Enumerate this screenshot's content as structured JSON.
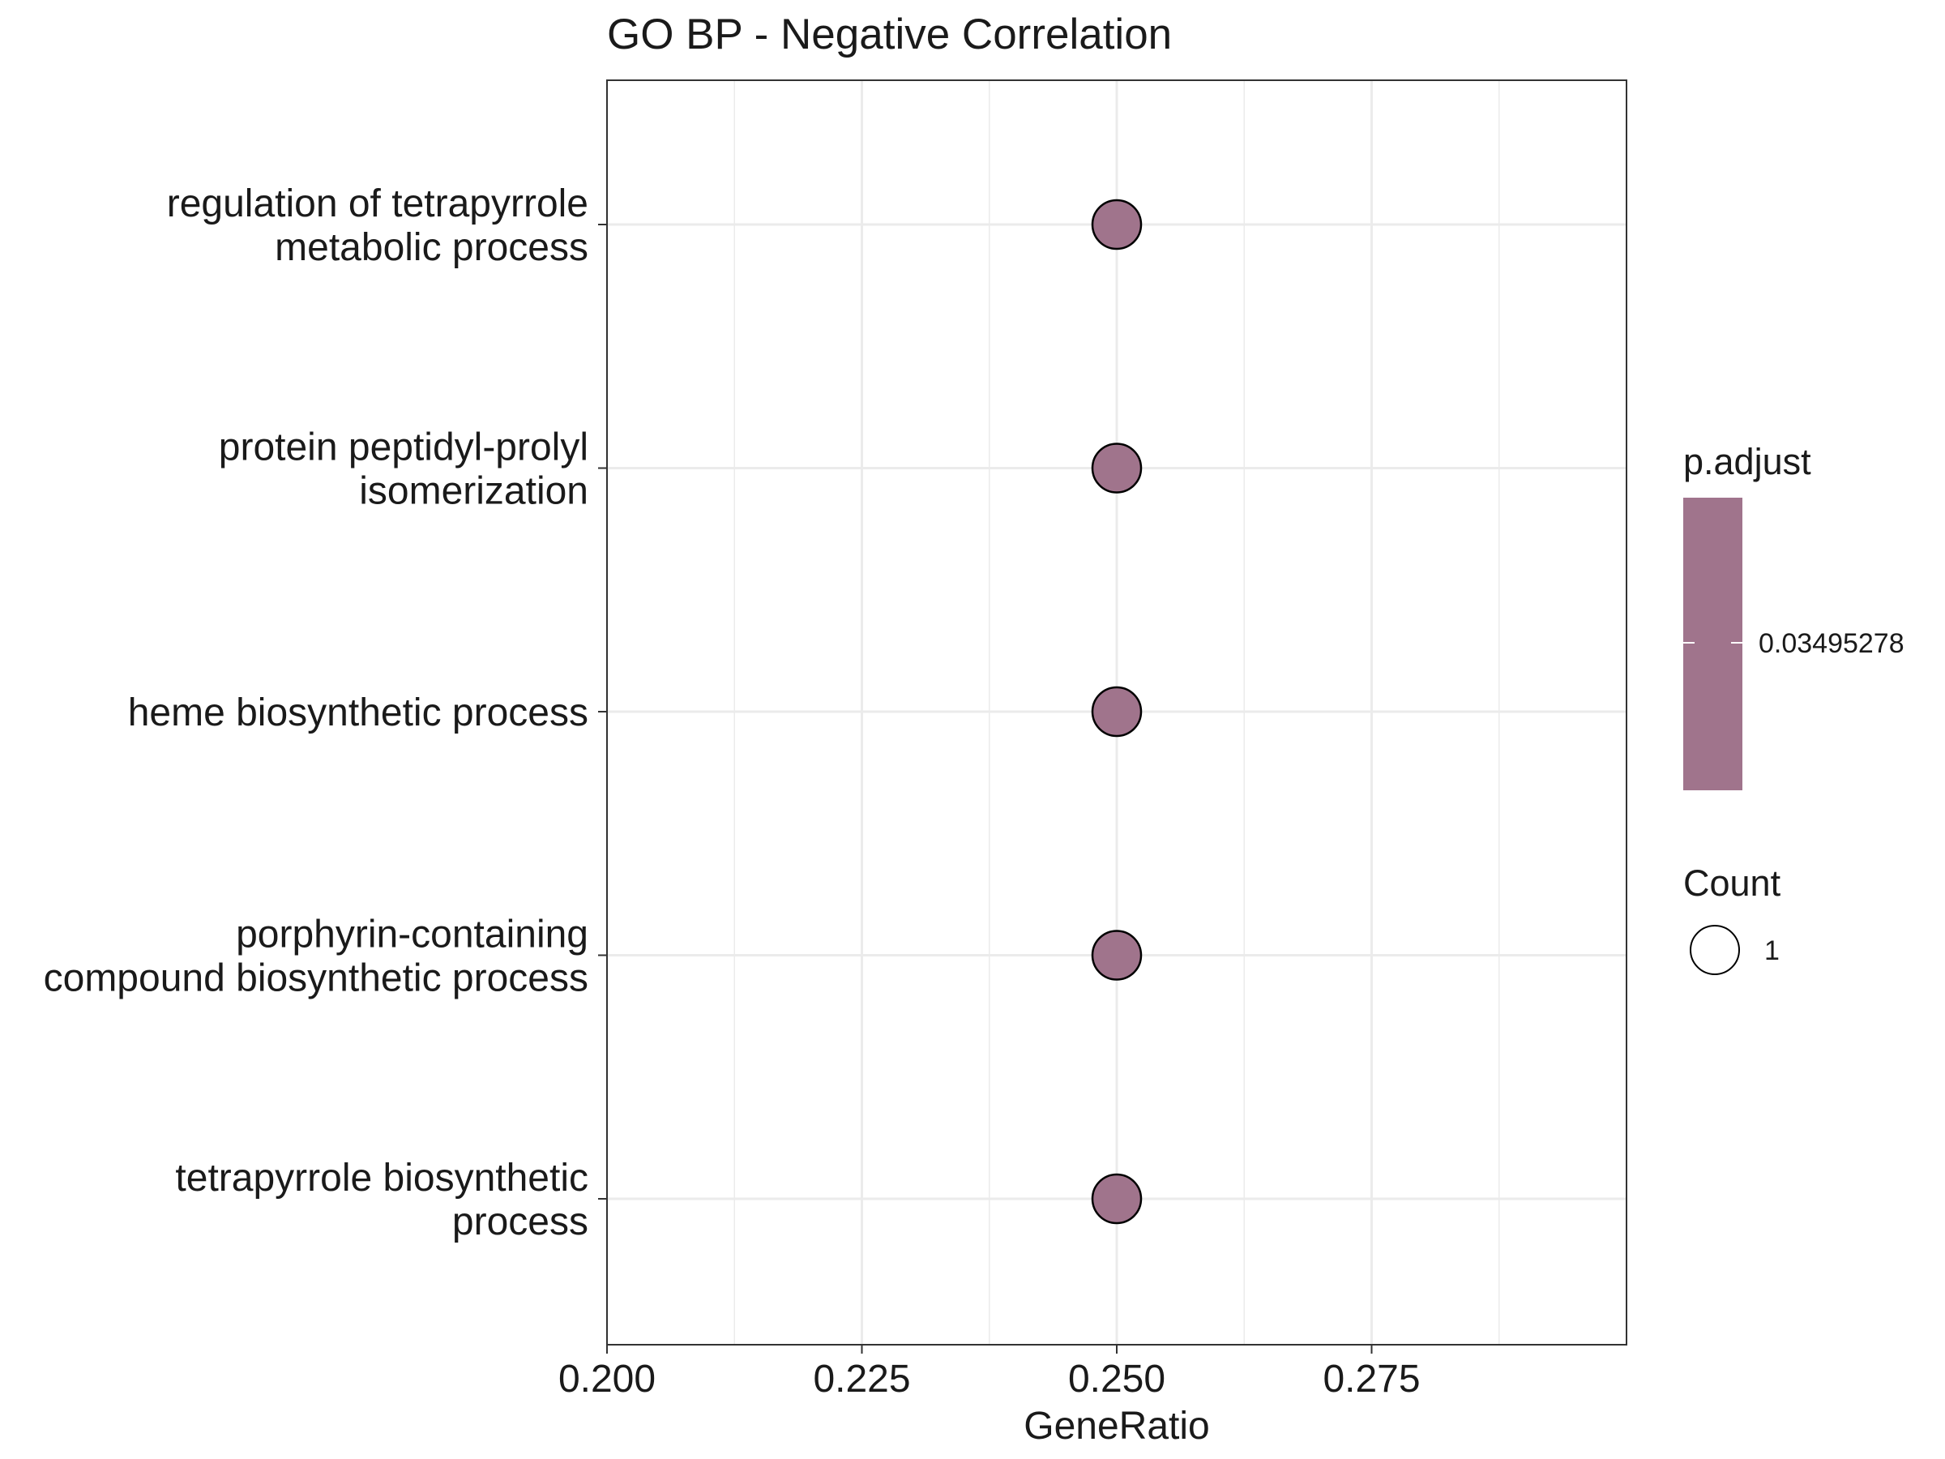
{
  "chart_data": {
    "type": "scatter",
    "title": "GO BP - Negative Correlation",
    "xlabel": "GeneRatio",
    "ylabel": "",
    "xlim": [
      0.2,
      0.3
    ],
    "x_ticks": [
      "0.200",
      "0.225",
      "0.250",
      "0.275"
    ],
    "x_tick_values": [
      0.2,
      0.225,
      0.25,
      0.275
    ],
    "grid": true,
    "legend_placement": "right",
    "categories": [
      [
        "regulation of tetrapyrrole",
        "metabolic process"
      ],
      [
        "protein peptidyl-prolyl",
        "isomerization"
      ],
      [
        "heme biosynthetic process"
      ],
      [
        "porphyrin-containing",
        "compound biosynthetic process"
      ],
      [
        "tetrapyrrole biosynthetic",
        "process"
      ]
    ],
    "points": [
      {
        "x": 0.25,
        "count": 1,
        "p_adjust": 0.03495278
      },
      {
        "x": 0.25,
        "count": 1,
        "p_adjust": 0.03495278
      },
      {
        "x": 0.25,
        "count": 1,
        "p_adjust": 0.03495278
      },
      {
        "x": 0.25,
        "count": 1,
        "p_adjust": 0.03495278
      },
      {
        "x": 0.25,
        "count": 1,
        "p_adjust": 0.03495278
      }
    ],
    "point_color": "#a0748c",
    "legend": {
      "color_title": "p.adjust",
      "color_label": "0.03495278",
      "size_title": "Count",
      "size_label": "1"
    }
  }
}
